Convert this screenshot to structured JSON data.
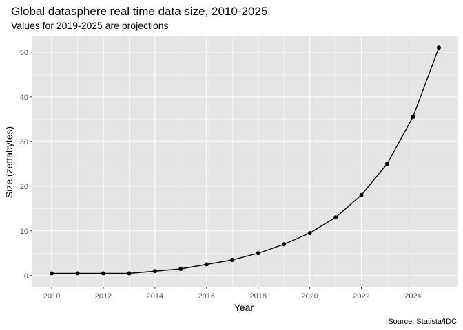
{
  "chart_data": {
    "type": "line",
    "title": "Global datasphere real time data size, 2010-2025",
    "subtitle": "Values for 2019-2025 are projections",
    "xlabel": "Year",
    "ylabel": "Size (zettabytes)",
    "caption": "Source: Statista/IDC",
    "x": [
      2010,
      2011,
      2012,
      2013,
      2014,
      2015,
      2016,
      2017,
      2018,
      2019,
      2020,
      2021,
      2022,
      2023,
      2024,
      2025
    ],
    "values": [
      0.5,
      0.5,
      0.5,
      0.5,
      1,
      1.5,
      2.5,
      3.5,
      5,
      7,
      9.5,
      13,
      18,
      25,
      35.5,
      51
    ],
    "x_ticks": [
      2010,
      2012,
      2014,
      2016,
      2018,
      2020,
      2022,
      2024
    ],
    "y_ticks": [
      0,
      10,
      20,
      30,
      40,
      50
    ],
    "xlim": [
      2009.25,
      2025.75
    ],
    "ylim": [
      -2.5,
      53.5
    ],
    "grid": true,
    "colors": {
      "panel": "#e5e5e5",
      "grid": "#ffffff",
      "line": "#000000",
      "point": "#000000"
    }
  }
}
